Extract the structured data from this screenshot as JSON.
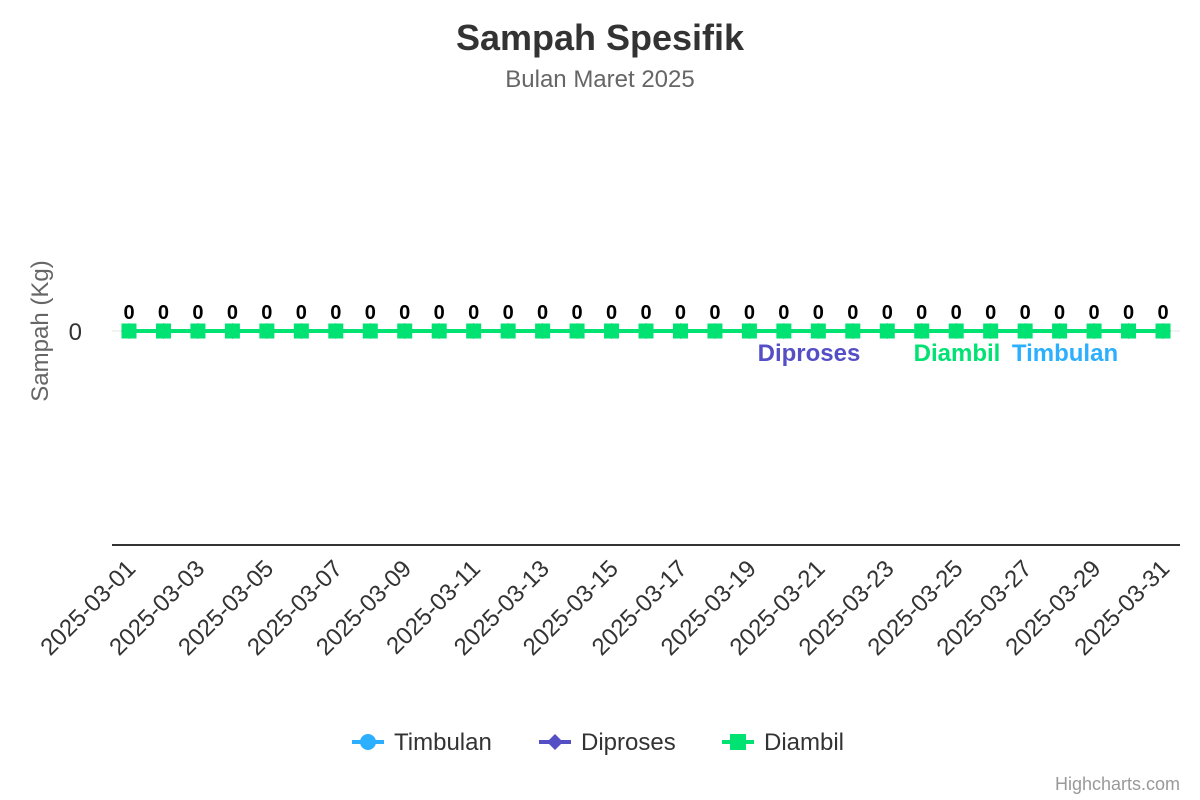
{
  "chart_data": {
    "type": "line",
    "title": "Sampah Spesifik",
    "subtitle": "Bulan Maret 2025",
    "ylabel": "Sampah (Kg)",
    "xlabel": "",
    "y_ticks": [
      "0"
    ],
    "x": [
      "2025-03-01",
      "2025-03-02",
      "2025-03-03",
      "2025-03-04",
      "2025-03-05",
      "2025-03-06",
      "2025-03-07",
      "2025-03-08",
      "2025-03-09",
      "2025-03-10",
      "2025-03-11",
      "2025-03-12",
      "2025-03-13",
      "2025-03-14",
      "2025-03-15",
      "2025-03-16",
      "2025-03-17",
      "2025-03-18",
      "2025-03-19",
      "2025-03-20",
      "2025-03-21",
      "2025-03-22",
      "2025-03-23",
      "2025-03-24",
      "2025-03-25",
      "2025-03-26",
      "2025-03-27",
      "2025-03-28",
      "2025-03-29",
      "2025-03-30",
      "2025-03-31"
    ],
    "x_tick_labels": [
      "2025-03-01",
      "2025-03-03",
      "2025-03-05",
      "2025-03-07",
      "2025-03-09",
      "2025-03-11",
      "2025-03-13",
      "2025-03-15",
      "2025-03-17",
      "2025-03-19",
      "2025-03-21",
      "2025-03-23",
      "2025-03-25",
      "2025-03-27",
      "2025-03-29",
      "2025-03-31"
    ],
    "series": [
      {
        "name": "Timbulan",
        "color": "#2caffe",
        "marker": "circle",
        "values": [
          0,
          0,
          0,
          0,
          0,
          0,
          0,
          0,
          0,
          0,
          0,
          0,
          0,
          0,
          0,
          0,
          0,
          0,
          0,
          0,
          0,
          0,
          0,
          0,
          0,
          0,
          0,
          0,
          0,
          0,
          0
        ],
        "end_label": "Timbulan"
      },
      {
        "name": "Diproses",
        "color": "#544fc5",
        "marker": "diamond",
        "values": [
          0,
          0,
          0,
          0,
          0,
          0,
          0,
          0,
          0,
          0,
          0,
          0,
          0,
          0,
          0,
          0,
          0,
          0,
          0,
          0,
          0,
          0,
          0,
          0,
          0,
          0,
          0,
          0,
          0,
          0,
          0
        ],
        "end_label": "Diproses"
      },
      {
        "name": "Diambil",
        "color": "#00e272",
        "marker": "square",
        "values": [
          0,
          0,
          0,
          0,
          0,
          0,
          0,
          0,
          0,
          0,
          0,
          0,
          0,
          0,
          0,
          0,
          0,
          0,
          0,
          0,
          0,
          0,
          0,
          0,
          0,
          0,
          0,
          0,
          0,
          0,
          0
        ],
        "end_label": "Diambil"
      }
    ],
    "data_labels": [
      "0",
      "0",
      "0",
      "0",
      "0",
      "0",
      "0",
      "0",
      "0",
      "0",
      "0",
      "0",
      "0",
      "0",
      "0",
      "0",
      "0",
      "0",
      "0",
      "0",
      "0",
      "0",
      "0",
      "0",
      "0",
      "0",
      "0",
      "0",
      "0",
      "0",
      "0"
    ],
    "legend_position": "bottom-center",
    "grid": true
  },
  "credits": "Highcharts.com"
}
